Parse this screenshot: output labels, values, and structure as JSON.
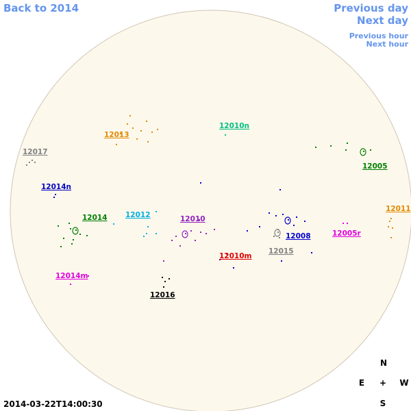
{
  "nav": {
    "back": "Back to 2014",
    "previous_day": "Previous day",
    "next_day": "Next day",
    "previous_hour": "Previous hour",
    "next_hour": "Next hour"
  },
  "timestamp": "2014-03-22T14:00:30",
  "compass": {
    "north": "N",
    "east": "E",
    "center": "+",
    "west": "W",
    "south": "S"
  },
  "regions": [
    {
      "label": "12013",
      "color": "#e08a00"
    },
    {
      "label": "12010n",
      "color": "#00c080"
    },
    {
      "label": "12017",
      "color": "#808080"
    },
    {
      "label": "12005",
      "color": "#008000"
    },
    {
      "label": "12014n",
      "color": "#0000c0"
    },
    {
      "label": "12011",
      "color": "#e08a00"
    },
    {
      "label": "12014",
      "color": "#008000"
    },
    {
      "label": "12012",
      "color": "#00b0e0"
    },
    {
      "label": "12010",
      "color": "#9020c0"
    },
    {
      "label": "12008",
      "color": "#0000d0"
    },
    {
      "label": "12005r",
      "color": "#e000e0"
    },
    {
      "label": "12015",
      "color": "#808080"
    },
    {
      "label": "12010m",
      "color": "#e00000"
    },
    {
      "label": "12014m",
      "color": "#e000e0"
    },
    {
      "label": "12016",
      "color": "#000000"
    }
  ]
}
